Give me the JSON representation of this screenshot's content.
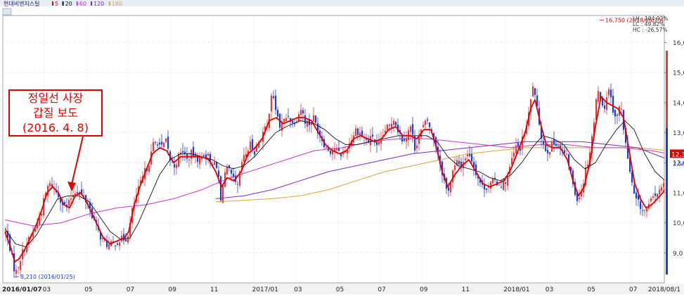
{
  "chart_data": {
    "type": "candlestick",
    "title": "현대비앤지스틸",
    "ma_legend": [
      {
        "label": "5",
        "color": "#e00000"
      },
      {
        "label": "20",
        "color": "#111111"
      },
      {
        "label": "60",
        "color": "#cc33cc"
      },
      {
        "label": "120",
        "color": "#7a2bbf"
      },
      {
        "label": "180",
        "color": "#d8a53a"
      }
    ],
    "y_ticks": [
      "9,0",
      "10,0",
      "11,0",
      "12,0",
      "13,0",
      "14,0",
      "15,0",
      "16,0"
    ],
    "ylim": [
      8000,
      16900
    ],
    "x_ticks": [
      "2016/01/07",
      "03",
      "05",
      "07",
      "09",
      "11",
      "2017/01",
      "03",
      "05",
      "07",
      "09",
      "11",
      "2018/01",
      "03",
      "05",
      "07",
      "2018/08/1"
    ],
    "max_label": "16,750 (2018/05/15)",
    "min_label": "8,210 (2016/01/25)",
    "stats": {
      "lh": "LH : 104.02%",
      "lc": "LC : 49.82%",
      "hc": "HC : -26.57%"
    },
    "last_price_label": "12,30",
    "last_change_label": "2,50",
    "annotation": {
      "line1": "정일선 사장",
      "line2": "갑질 보도",
      "line3": "(2016. 4. 8)"
    },
    "close_path": [
      [
        0,
        9700
      ],
      [
        5,
        9300
      ],
      [
        10,
        8700
      ],
      [
        14,
        8300
      ],
      [
        18,
        8600
      ],
      [
        25,
        9100
      ],
      [
        32,
        9400
      ],
      [
        38,
        9600
      ],
      [
        45,
        10000
      ],
      [
        50,
        10300
      ],
      [
        55,
        10800
      ],
      [
        60,
        11200
      ],
      [
        65,
        11300
      ],
      [
        70,
        11100
      ],
      [
        76,
        10900
      ],
      [
        82,
        10600
      ],
      [
        88,
        10500
      ],
      [
        94,
        10900
      ],
      [
        100,
        11100
      ],
      [
        106,
        11000
      ],
      [
        112,
        10800
      ],
      [
        118,
        10600
      ],
      [
        124,
        10200
      ],
      [
        130,
        9800
      ],
      [
        136,
        9500
      ],
      [
        142,
        9300
      ],
      [
        148,
        9250
      ],
      [
        154,
        9300
      ],
      [
        160,
        9400
      ],
      [
        166,
        9450
      ],
      [
        172,
        9500
      ],
      [
        176,
        9800
      ],
      [
        180,
        10400
      ],
      [
        186,
        10900
      ],
      [
        192,
        11300
      ],
      [
        198,
        11700
      ],
      [
        204,
        12000
      ],
      [
        210,
        12600
      ],
      [
        216,
        12700
      ],
      [
        222,
        12500
      ],
      [
        228,
        12700
      ],
      [
        234,
        12100
      ],
      [
        240,
        11900
      ],
      [
        246,
        12200
      ],
      [
        252,
        12400
      ],
      [
        258,
        12100
      ],
      [
        264,
        12300
      ],
      [
        270,
        12200
      ],
      [
        276,
        12100
      ],
      [
        282,
        12300
      ],
      [
        288,
        12200
      ],
      [
        294,
        12000
      ],
      [
        300,
        11800
      ],
      [
        304,
        11400
      ],
      [
        306,
        10700
      ],
      [
        310,
        11600
      ],
      [
        316,
        11800
      ],
      [
        320,
        11600
      ],
      [
        326,
        11300
      ],
      [
        330,
        11200
      ],
      [
        336,
        12000
      ],
      [
        342,
        12300
      ],
      [
        348,
        12600
      ],
      [
        354,
        12400
      ],
      [
        360,
        12700
      ],
      [
        366,
        13000
      ],
      [
        372,
        13200
      ],
      [
        378,
        14300
      ],
      [
        384,
        13800
      ],
      [
        390,
        13200
      ],
      [
        396,
        13400
      ],
      [
        402,
        13600
      ],
      [
        408,
        13300
      ],
      [
        414,
        13500
      ],
      [
        420,
        13800
      ],
      [
        426,
        13400
      ],
      [
        432,
        13300
      ],
      [
        438,
        13500
      ],
      [
        444,
        13100
      ],
      [
        450,
        12800
      ],
      [
        456,
        12500
      ],
      [
        462,
        12400
      ],
      [
        468,
        12500
      ],
      [
        474,
        12300
      ],
      [
        480,
        12300
      ],
      [
        486,
        12500
      ],
      [
        492,
        12800
      ],
      [
        498,
        13100
      ],
      [
        504,
        13000
      ],
      [
        510,
        12800
      ],
      [
        516,
        12700
      ],
      [
        522,
        12900
      ],
      [
        528,
        12500
      ],
      [
        534,
        12700
      ],
      [
        540,
        13100
      ],
      [
        546,
        13200
      ],
      [
        552,
        13500
      ],
      [
        558,
        13100
      ],
      [
        564,
        12800
      ],
      [
        570,
        12900
      ],
      [
        576,
        13200
      ],
      [
        582,
        12500
      ],
      [
        588,
        12900
      ],
      [
        594,
        13200
      ],
      [
        600,
        13400
      ],
      [
        606,
        13000
      ],
      [
        612,
        12600
      ],
      [
        618,
        12000
      ],
      [
        624,
        11400
      ],
      [
        628,
        11000
      ],
      [
        632,
        11300
      ],
      [
        636,
        11700
      ],
      [
        642,
        12000
      ],
      [
        648,
        11900
      ],
      [
        654,
        12200
      ],
      [
        660,
        12300
      ],
      [
        666,
        11900
      ],
      [
        672,
        11500
      ],
      [
        678,
        11200
      ],
      [
        684,
        11200
      ],
      [
        690,
        11300
      ],
      [
        696,
        11400
      ],
      [
        702,
        11300
      ],
      [
        708,
        11300
      ],
      [
        714,
        11500
      ],
      [
        720,
        12100
      ],
      [
        726,
        12500
      ],
      [
        732,
        12500
      ],
      [
        738,
        13000
      ],
      [
        742,
        13300
      ],
      [
        746,
        13900
      ],
      [
        750,
        14600
      ],
      [
        754,
        14000
      ],
      [
        758,
        13500
      ],
      [
        762,
        12900
      ],
      [
        766,
        12500
      ],
      [
        772,
        12400
      ],
      [
        778,
        12600
      ],
      [
        784,
        12700
      ],
      [
        790,
        12400
      ],
      [
        796,
        12300
      ],
      [
        802,
        11900
      ],
      [
        806,
        11400
      ],
      [
        810,
        11000
      ],
      [
        814,
        10800
      ],
      [
        818,
        11000
      ],
      [
        822,
        11400
      ],
      [
        826,
        11900
      ],
      [
        830,
        12200
      ],
      [
        834,
        12900
      ],
      [
        838,
        13500
      ],
      [
        842,
        14600
      ],
      [
        846,
        14200
      ],
      [
        850,
        13700
      ],
      [
        854,
        14100
      ],
      [
        858,
        14500
      ],
      [
        862,
        14000
      ],
      [
        866,
        13600
      ],
      [
        870,
        13500
      ],
      [
        874,
        14000
      ],
      [
        878,
        13400
      ],
      [
        882,
        12600
      ],
      [
        886,
        12000
      ],
      [
        890,
        11400
      ],
      [
        894,
        10900
      ],
      [
        898,
        10700
      ],
      [
        902,
        10600
      ],
      [
        906,
        10400
      ],
      [
        910,
        10400
      ],
      [
        914,
        10500
      ],
      [
        918,
        10700
      ],
      [
        922,
        10900
      ],
      [
        926,
        11000
      ],
      [
        930,
        11000
      ],
      [
        934,
        11200
      ],
      [
        940,
        11400
      ],
      [
        944,
        12200
      ]
    ],
    "ma5_path": [
      [
        0,
        9700
      ],
      [
        8,
        9200
      ],
      [
        14,
        8700
      ],
      [
        20,
        8800
      ],
      [
        28,
        9100
      ],
      [
        36,
        9500
      ],
      [
        44,
        9900
      ],
      [
        52,
        10400
      ],
      [
        60,
        11000
      ],
      [
        68,
        11200
      ],
      [
        76,
        11000
      ],
      [
        84,
        10600
      ],
      [
        92,
        10500
      ],
      [
        100,
        10900
      ],
      [
        108,
        11000
      ],
      [
        116,
        10700
      ],
      [
        124,
        10300
      ],
      [
        132,
        9900
      ],
      [
        140,
        9500
      ],
      [
        150,
        9300
      ],
      [
        160,
        9400
      ],
      [
        170,
        9500
      ],
      [
        176,
        9700
      ],
      [
        184,
        10600
      ],
      [
        192,
        11200
      ],
      [
        200,
        11700
      ],
      [
        210,
        12300
      ],
      [
        220,
        12500
      ],
      [
        230,
        12400
      ],
      [
        240,
        12000
      ],
      [
        250,
        12200
      ],
      [
        260,
        12200
      ],
      [
        270,
        12200
      ],
      [
        280,
        12200
      ],
      [
        290,
        12100
      ],
      [
        300,
        11700
      ],
      [
        308,
        11200
      ],
      [
        316,
        11500
      ],
      [
        326,
        11400
      ],
      [
        336,
        11700
      ],
      [
        346,
        12300
      ],
      [
        356,
        12500
      ],
      [
        366,
        12800
      ],
      [
        376,
        13400
      ],
      [
        386,
        13500
      ],
      [
        396,
        13300
      ],
      [
        406,
        13400
      ],
      [
        416,
        13500
      ],
      [
        426,
        13500
      ],
      [
        436,
        13400
      ],
      [
        446,
        13000
      ],
      [
        456,
        12600
      ],
      [
        466,
        12400
      ],
      [
        476,
        12300
      ],
      [
        486,
        12400
      ],
      [
        496,
        12800
      ],
      [
        506,
        12900
      ],
      [
        516,
        12800
      ],
      [
        526,
        12700
      ],
      [
        536,
        12800
      ],
      [
        546,
        13100
      ],
      [
        556,
        13200
      ],
      [
        566,
        12900
      ],
      [
        576,
        12900
      ],
      [
        586,
        12800
      ],
      [
        596,
        13100
      ],
      [
        606,
        13100
      ],
      [
        614,
        12500
      ],
      [
        622,
        11700
      ],
      [
        630,
        11200
      ],
      [
        640,
        11600
      ],
      [
        650,
        11900
      ],
      [
        660,
        12100
      ],
      [
        670,
        11700
      ],
      [
        680,
        11300
      ],
      [
        690,
        11200
      ],
      [
        700,
        11300
      ],
      [
        710,
        11400
      ],
      [
        720,
        11800
      ],
      [
        730,
        12400
      ],
      [
        740,
        13000
      ],
      [
        748,
        13800
      ],
      [
        754,
        14100
      ],
      [
        762,
        13300
      ],
      [
        770,
        12600
      ],
      [
        780,
        12500
      ],
      [
        790,
        12500
      ],
      [
        800,
        12100
      ],
      [
        808,
        11400
      ],
      [
        816,
        10900
      ],
      [
        824,
        11200
      ],
      [
        832,
        12000
      ],
      [
        840,
        13200
      ],
      [
        848,
        14200
      ],
      [
        856,
        14000
      ],
      [
        864,
        13900
      ],
      [
        872,
        13800
      ],
      [
        880,
        13500
      ],
      [
        888,
        12400
      ],
      [
        896,
        11300
      ],
      [
        904,
        10800
      ],
      [
        912,
        10500
      ],
      [
        920,
        10600
      ],
      [
        928,
        10800
      ],
      [
        936,
        11000
      ],
      [
        944,
        11400
      ]
    ],
    "ma20_path": [
      [
        0,
        9800
      ],
      [
        15,
        9300
      ],
      [
        30,
        9200
      ],
      [
        45,
        9600
      ],
      [
        60,
        10200
      ],
      [
        75,
        10800
      ],
      [
        90,
        10900
      ],
      [
        105,
        10900
      ],
      [
        120,
        10700
      ],
      [
        135,
        10200
      ],
      [
        150,
        9700
      ],
      [
        165,
        9450
      ],
      [
        178,
        9500
      ],
      [
        190,
        10000
      ],
      [
        205,
        10800
      ],
      [
        220,
        11600
      ],
      [
        235,
        12100
      ],
      [
        250,
        12300
      ],
      [
        265,
        12300
      ],
      [
        280,
        12200
      ],
      [
        295,
        12100
      ],
      [
        310,
        11900
      ],
      [
        325,
        11800
      ],
      [
        340,
        11900
      ],
      [
        355,
        12200
      ],
      [
        370,
        12600
      ],
      [
        385,
        13000
      ],
      [
        400,
        13200
      ],
      [
        420,
        13400
      ],
      [
        440,
        13300
      ],
      [
        455,
        13100
      ],
      [
        470,
        12800
      ],
      [
        485,
        12600
      ],
      [
        500,
        12600
      ],
      [
        520,
        12700
      ],
      [
        540,
        12800
      ],
      [
        560,
        12900
      ],
      [
        580,
        12900
      ],
      [
        600,
        12900
      ],
      [
        615,
        12700
      ],
      [
        630,
        12200
      ],
      [
        645,
        11900
      ],
      [
        660,
        11800
      ],
      [
        675,
        11700
      ],
      [
        690,
        11500
      ],
      [
        705,
        11400
      ],
      [
        720,
        11600
      ],
      [
        735,
        12000
      ],
      [
        750,
        12500
      ],
      [
        765,
        12900
      ],
      [
        780,
        12800
      ],
      [
        795,
        12600
      ],
      [
        810,
        12100
      ],
      [
        825,
        11800
      ],
      [
        840,
        12000
      ],
      [
        855,
        12600
      ],
      [
        870,
        13100
      ],
      [
        882,
        13400
      ],
      [
        895,
        13100
      ],
      [
        910,
        12300
      ],
      [
        925,
        11700
      ],
      [
        944,
        11300
      ]
    ],
    "ma60_path": [
      [
        0,
        10100
      ],
      [
        40,
        9900
      ],
      [
        80,
        10000
      ],
      [
        120,
        10300
      ],
      [
        160,
        10500
      ],
      [
        200,
        10600
      ],
      [
        240,
        10800
      ],
      [
        280,
        11100
      ],
      [
        320,
        11500
      ],
      [
        360,
        11800
      ],
      [
        400,
        12100
      ],
      [
        440,
        12400
      ],
      [
        480,
        12500
      ],
      [
        520,
        12700
      ],
      [
        560,
        12800
      ],
      [
        600,
        12800
      ],
      [
        640,
        12700
      ],
      [
        680,
        12600
      ],
      [
        720,
        12500
      ],
      [
        760,
        12600
      ],
      [
        800,
        12600
      ],
      [
        840,
        12500
      ],
      [
        880,
        12500
      ],
      [
        920,
        12400
      ],
      [
        944,
        12300
      ]
    ],
    "ma120_path": [
      [
        300,
        10800
      ],
      [
        340,
        10900
      ],
      [
        380,
        11100
      ],
      [
        420,
        11400
      ],
      [
        460,
        11700
      ],
      [
        500,
        11900
      ],
      [
        540,
        12100
      ],
      [
        580,
        12300
      ],
      [
        620,
        12400
      ],
      [
        660,
        12500
      ],
      [
        700,
        12600
      ],
      [
        740,
        12700
      ],
      [
        780,
        12700
      ],
      [
        820,
        12700
      ],
      [
        860,
        12600
      ],
      [
        900,
        12500
      ],
      [
        944,
        12100
      ]
    ],
    "ma180_path": [
      [
        300,
        10700
      ],
      [
        340,
        10750
      ],
      [
        380,
        10800
      ],
      [
        420,
        10900
      ],
      [
        460,
        11100
      ],
      [
        500,
        11400
      ],
      [
        540,
        11700
      ],
      [
        580,
        11900
      ],
      [
        620,
        12100
      ],
      [
        660,
        12300
      ],
      [
        700,
        12400
      ],
      [
        740,
        12500
      ],
      [
        780,
        12500
      ],
      [
        820,
        12500
      ],
      [
        860,
        12500
      ],
      [
        900,
        12500
      ],
      [
        944,
        12400
      ]
    ]
  }
}
